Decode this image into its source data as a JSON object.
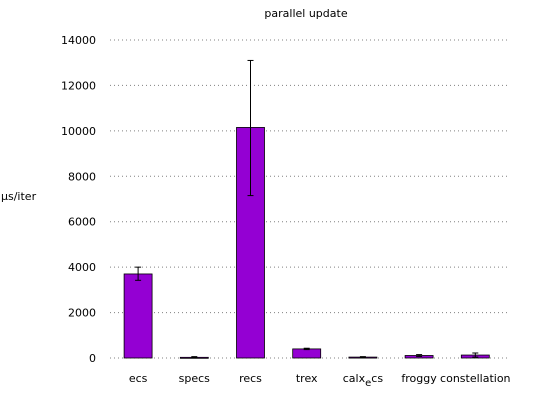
{
  "chart_data": {
    "type": "bar",
    "title": "parallel update",
    "ylabel": "µs/iter",
    "xlabel": "",
    "categories": [
      "ecs",
      "specs",
      "recs",
      "trex",
      "calx_ecs",
      "froggy",
      "constellation"
    ],
    "category_labels": [
      {
        "text": "ecs"
      },
      {
        "text": "specs"
      },
      {
        "text": "recs"
      },
      {
        "text": "trex"
      },
      {
        "text": "calx",
        "sub": "e",
        "tail": "cs"
      },
      {
        "text": "froggy"
      },
      {
        "text": "constellation"
      }
    ],
    "values": [
      3700,
      30,
      10150,
      400,
      40,
      110,
      130
    ],
    "error_low": [
      3420,
      0,
      7150,
      370,
      20,
      70,
      40
    ],
    "error_high": [
      4000,
      60,
      13100,
      430,
      60,
      150,
      220
    ],
    "ylim": [
      0,
      14000
    ],
    "yticks": [
      0,
      2000,
      4000,
      6000,
      8000,
      10000,
      12000,
      14000
    ],
    "grid": true,
    "legend": "none",
    "bar_color": "#9400d3",
    "grid_color": "#808080"
  }
}
